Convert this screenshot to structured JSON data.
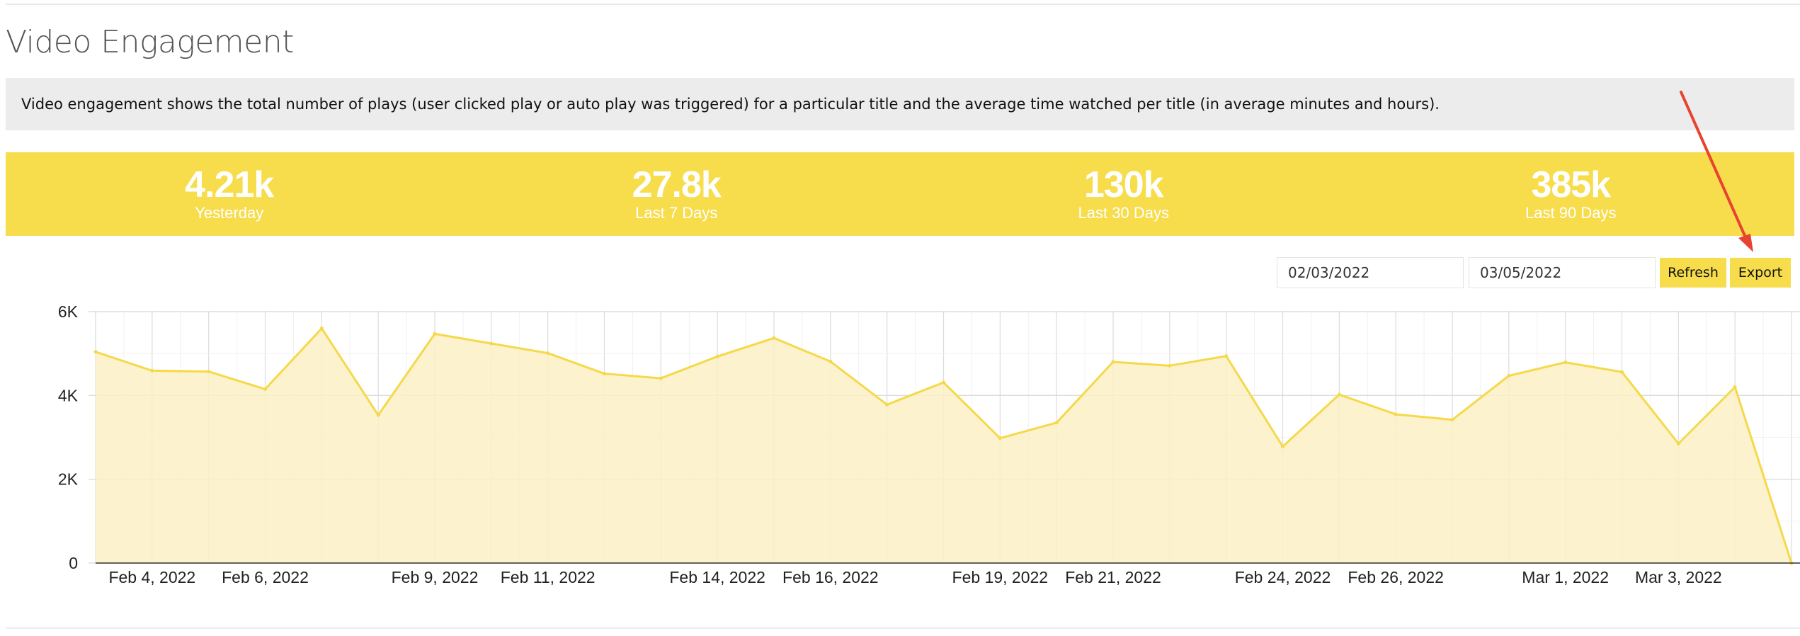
{
  "page": {
    "title": "Video Engagement",
    "description": "Video engagement shows the total number of plays (user clicked play or auto play was triggered) for a particular title and the average time watched per title (in average minutes and hours)."
  },
  "stats": [
    {
      "value": "4.21k",
      "label": "Yesterday"
    },
    {
      "value": "27.8k",
      "label": "Last 7 Days"
    },
    {
      "value": "130k",
      "label": "Last 30 Days"
    },
    {
      "value": "385k",
      "label": "Last 90 Days"
    }
  ],
  "controls": {
    "start_date": "02/03/2022",
    "end_date": "03/05/2022",
    "refresh_label": "Refresh",
    "export_label": "Export"
  },
  "colors": {
    "accent": "#f7dc4c",
    "line": "#f5d94a",
    "fill": "#fcf0c4",
    "annotation_arrow": "#e8432f"
  },
  "chart_data": {
    "type": "area",
    "x": [
      "2022-02-03",
      "2022-02-04",
      "2022-02-05",
      "2022-02-06",
      "2022-02-07",
      "2022-02-08",
      "2022-02-09",
      "2022-02-10",
      "2022-02-11",
      "2022-02-12",
      "2022-02-13",
      "2022-02-14",
      "2022-02-15",
      "2022-02-16",
      "2022-02-17",
      "2022-02-18",
      "2022-02-19",
      "2022-02-20",
      "2022-02-21",
      "2022-02-22",
      "2022-02-23",
      "2022-02-24",
      "2022-02-25",
      "2022-02-26",
      "2022-02-27",
      "2022-02-28",
      "2022-03-01",
      "2022-03-02",
      "2022-03-03",
      "2022-03-04",
      "2022-03-05"
    ],
    "series": [
      {
        "values": [
          5040,
          4590,
          4570,
          4150,
          5600,
          3530,
          5470,
          5240,
          5010,
          4520,
          4410,
          4930,
          5370,
          4810,
          3780,
          4310,
          2980,
          3350,
          4800,
          4710,
          4940,
          2780,
          4020,
          3550,
          3420,
          4470,
          4790,
          4560,
          2850,
          4200,
          0
        ]
      }
    ],
    "x_tick_labels": [
      {
        "x": "2022-02-04",
        "label": "Feb 4, 2022"
      },
      {
        "x": "2022-02-06",
        "label": "Feb 6, 2022"
      },
      {
        "x": "2022-02-09",
        "label": "Feb 9, 2022"
      },
      {
        "x": "2022-02-11",
        "label": "Feb 11, 2022"
      },
      {
        "x": "2022-02-14",
        "label": "Feb 14, 2022"
      },
      {
        "x": "2022-02-16",
        "label": "Feb 16, 2022"
      },
      {
        "x": "2022-02-19",
        "label": "Feb 19, 2022"
      },
      {
        "x": "2022-02-21",
        "label": "Feb 21, 2022"
      },
      {
        "x": "2022-02-24",
        "label": "Feb 24, 2022"
      },
      {
        "x": "2022-02-26",
        "label": "Feb 26, 2022"
      },
      {
        "x": "2022-03-01",
        "label": "Mar 1, 2022"
      },
      {
        "x": "2022-03-03",
        "label": "Mar 3, 2022"
      }
    ],
    "y_ticks": [
      {
        "value": 0,
        "label": "0"
      },
      {
        "value": 2000,
        "label": "2K"
      },
      {
        "value": 4000,
        "label": "4K"
      },
      {
        "value": 6000,
        "label": "6K"
      }
    ],
    "ylim": [
      0,
      6000
    ],
    "grid": true
  }
}
